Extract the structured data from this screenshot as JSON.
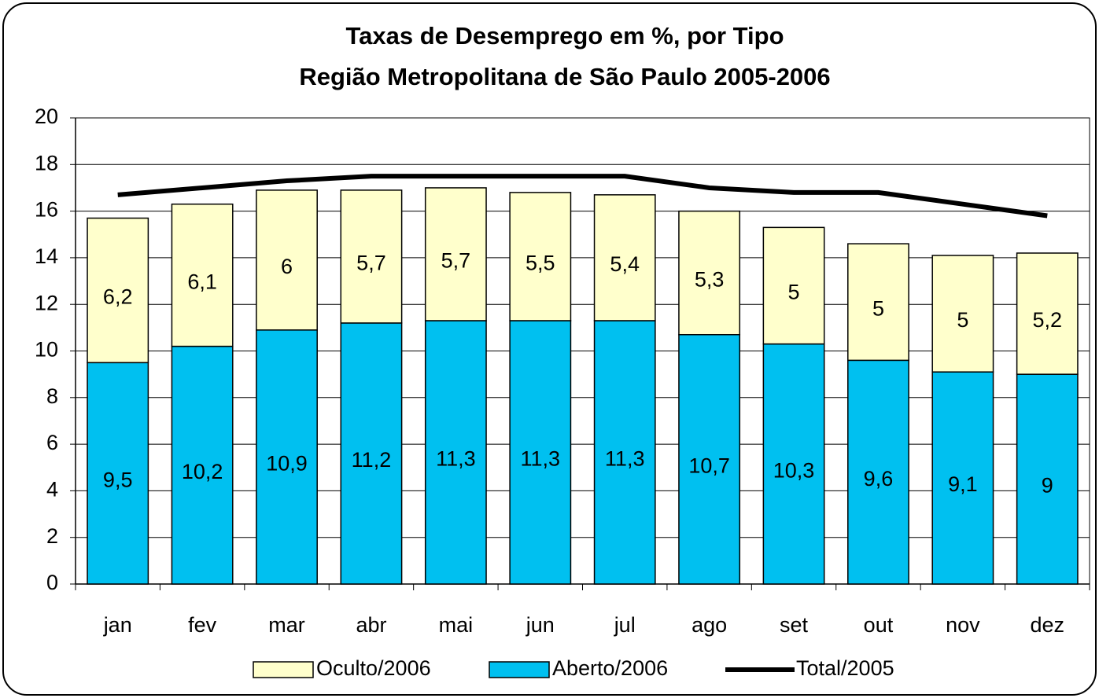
{
  "chart_data": {
    "type": "bar",
    "title": "Taxas de Desemprego em %, por Tipo",
    "subtitle": "Região Metropolitana de São Paulo 2005-2006",
    "categories": [
      "jan",
      "fev",
      "mar",
      "abr",
      "mai",
      "jun",
      "jul",
      "ago",
      "set",
      "out",
      "nov",
      "dez"
    ],
    "series": [
      {
        "name": "Aberto/2006",
        "type": "bar",
        "color": "#00c0f0",
        "values": [
          9.5,
          10.2,
          10.9,
          11.2,
          11.3,
          11.3,
          11.3,
          10.7,
          10.3,
          9.6,
          9.1,
          9
        ],
        "value_labels": [
          "9,5",
          "10,2",
          "10,9",
          "11,2",
          "11,3",
          "11,3",
          "11,3",
          "10,7",
          "10,3",
          "9,6",
          "9,1",
          "9"
        ]
      },
      {
        "name": "Oculto/2006",
        "type": "bar",
        "color": "#ffffcc",
        "values": [
          6.2,
          6.1,
          6,
          5.7,
          5.7,
          5.5,
          5.4,
          5.3,
          5,
          5,
          5,
          5.2
        ],
        "value_labels": [
          "6,2",
          "6,1",
          "6",
          "5,7",
          "5,7",
          "5,5",
          "5,4",
          "5,3",
          "5",
          "5",
          "5",
          "5,2"
        ]
      },
      {
        "name": "Total/2005",
        "type": "line",
        "color": "#000000",
        "values": [
          16.7,
          17.0,
          17.3,
          17.5,
          17.5,
          17.5,
          17.5,
          17.0,
          16.8,
          16.8,
          16.3,
          15.8
        ]
      }
    ],
    "stacked": true,
    "ylim": [
      0,
      20
    ],
    "yticks": [
      0,
      2,
      4,
      6,
      8,
      10,
      12,
      14,
      16,
      18,
      20
    ],
    "grid": true,
    "legend": "bottom"
  }
}
